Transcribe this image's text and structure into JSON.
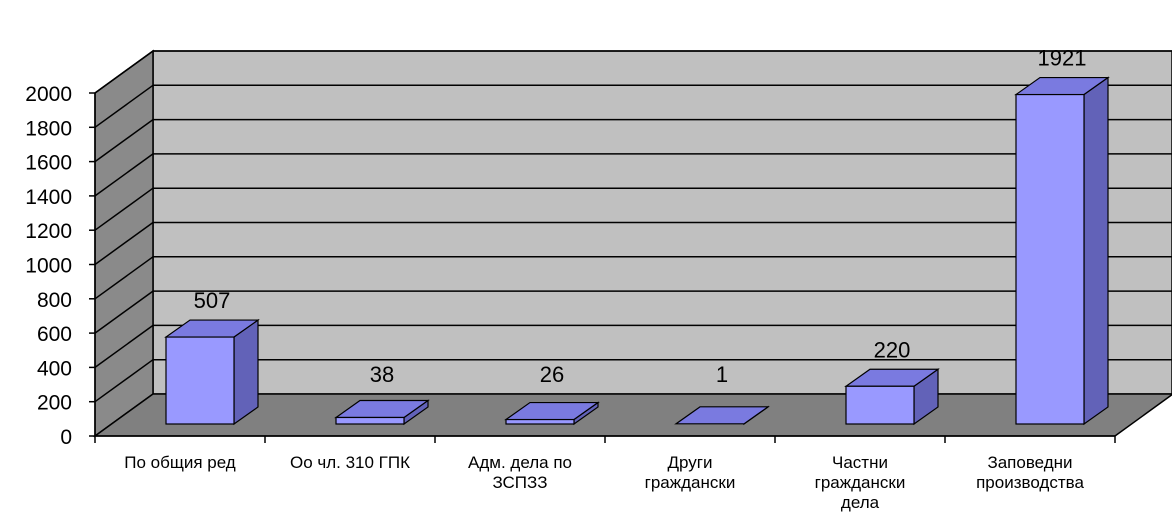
{
  "chart_data": {
    "type": "bar",
    "title": "",
    "xlabel": "",
    "ylabel": "",
    "ylim": [
      0,
      2000
    ],
    "yticks": [
      0,
      200,
      400,
      600,
      800,
      1000,
      1200,
      1400,
      1600,
      1800,
      2000
    ],
    "grid": true,
    "categories": [
      [
        "По общия ред"
      ],
      [
        "Оо чл. 310 ГПК"
      ],
      [
        "Адм. дела по",
        "ЗСПЗЗ"
      ],
      [
        "Други",
        "граждански"
      ],
      [
        "Частни",
        "граждански",
        "дела"
      ],
      [
        "Заповедни",
        "производства"
      ]
    ],
    "values": [
      507,
      38,
      26,
      1,
      220,
      1921
    ],
    "colors": {
      "bar_front": "#9999ff",
      "bar_top": "#7a7ae0",
      "bar_side": "#6262b8",
      "back_wall": "#c0c0c0",
      "side_wall": "#8a8a8a",
      "floor": "#808080"
    }
  }
}
